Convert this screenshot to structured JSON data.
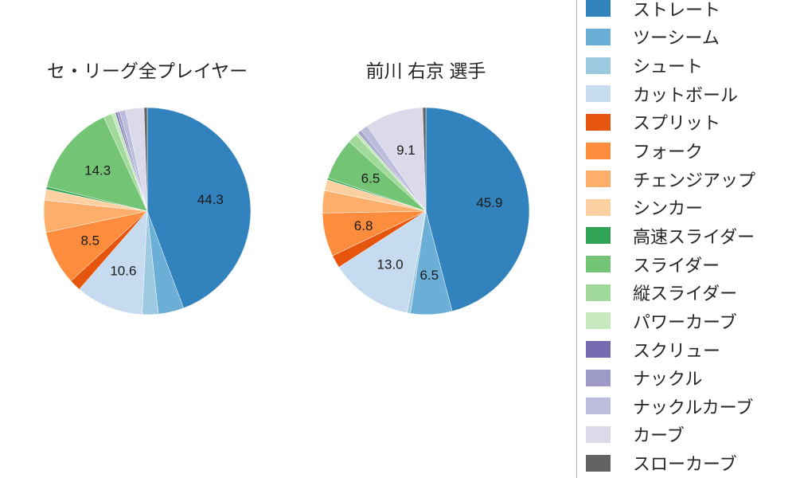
{
  "chart_data": [
    {
      "type": "pie",
      "title": "セ・リーグ全プレイヤー",
      "categories": [
        "ストレート",
        "ツーシーム",
        "シュート",
        "カットボール",
        "スプリット",
        "フォーク",
        "チェンジアップ",
        "シンカー",
        "高速スライダー",
        "スライダー",
        "縦スライダー",
        "パワーカーブ",
        "スクリュー",
        "ナックル",
        "ナックルカーブ",
        "カーブ",
        "スローカーブ"
      ],
      "values": [
        44.3,
        4.0,
        2.5,
        10.6,
        1.8,
        8.5,
        5.0,
        1.7,
        0.4,
        14.3,
        1.3,
        0.6,
        0.3,
        0.4,
        0.9,
        2.9,
        0.5
      ],
      "colors": [
        "#3182bd",
        "#6baed6",
        "#9ecae1",
        "#c6dbef",
        "#e6550d",
        "#fd8d3c",
        "#fdae6b",
        "#fdd0a2",
        "#31a354",
        "#74c476",
        "#a1d99b",
        "#c7e9c0",
        "#756bb1",
        "#9e9ac8",
        "#bcbddc",
        "#dadaeb",
        "#636363"
      ],
      "shown_value_labels": [
        "44.3",
        "10.6",
        "8.5",
        "14.3"
      ],
      "label_min_pct": 6.0,
      "start_angle_deg": 90,
      "direction": "clockwise"
    },
    {
      "type": "pie",
      "title": "前川 右京  選手",
      "categories": [
        "ストレート",
        "ツーシーム",
        "シュート",
        "カットボール",
        "スプリット",
        "フォーク",
        "チェンジアップ",
        "シンカー",
        "高速スライダー",
        "スライダー",
        "縦スライダー",
        "パワーカーブ",
        "スクリュー",
        "ナックル",
        "ナックルカーブ",
        "カーブ",
        "スローカーブ"
      ],
      "values": [
        45.9,
        6.5,
        0.5,
        13.0,
        2.0,
        6.8,
        3.5,
        1.7,
        0.3,
        6.5,
        1.5,
        0.5,
        0.2,
        0.3,
        1.2,
        9.1,
        0.5
      ],
      "colors": [
        "#3182bd",
        "#6baed6",
        "#9ecae1",
        "#c6dbef",
        "#e6550d",
        "#fd8d3c",
        "#fdae6b",
        "#fdd0a2",
        "#31a354",
        "#74c476",
        "#a1d99b",
        "#c7e9c0",
        "#756bb1",
        "#9e9ac8",
        "#bcbddc",
        "#dadaeb",
        "#636363"
      ],
      "shown_value_labels": [
        "45.9",
        "6.5",
        "13.0",
        "6.8",
        "6.5",
        "9.1"
      ],
      "label_min_pct": 6.0,
      "start_angle_deg": 90,
      "direction": "clockwise"
    }
  ],
  "legend": {
    "items": [
      {
        "label": "ストレート",
        "color": "#3182bd"
      },
      {
        "label": "ツーシーム",
        "color": "#6baed6"
      },
      {
        "label": "シュート",
        "color": "#9ecae1"
      },
      {
        "label": "カットボール",
        "color": "#c6dbef"
      },
      {
        "label": "スプリット",
        "color": "#e6550d"
      },
      {
        "label": "フォーク",
        "color": "#fd8d3c"
      },
      {
        "label": "チェンジアップ",
        "color": "#fdae6b"
      },
      {
        "label": "シンカー",
        "color": "#fdd0a2"
      },
      {
        "label": "高速スライダー",
        "color": "#31a354"
      },
      {
        "label": "スライダー",
        "color": "#74c476"
      },
      {
        "label": "縦スライダー",
        "color": "#a1d99b"
      },
      {
        "label": "パワーカーブ",
        "color": "#c7e9c0"
      },
      {
        "label": "スクリュー",
        "color": "#756bb1"
      },
      {
        "label": "ナックル",
        "color": "#9e9ac8"
      },
      {
        "label": "ナックルカーブ",
        "color": "#bcbddc"
      },
      {
        "label": "カーブ",
        "color": "#dadaeb"
      },
      {
        "label": "スローカーブ",
        "color": "#636363"
      }
    ]
  }
}
